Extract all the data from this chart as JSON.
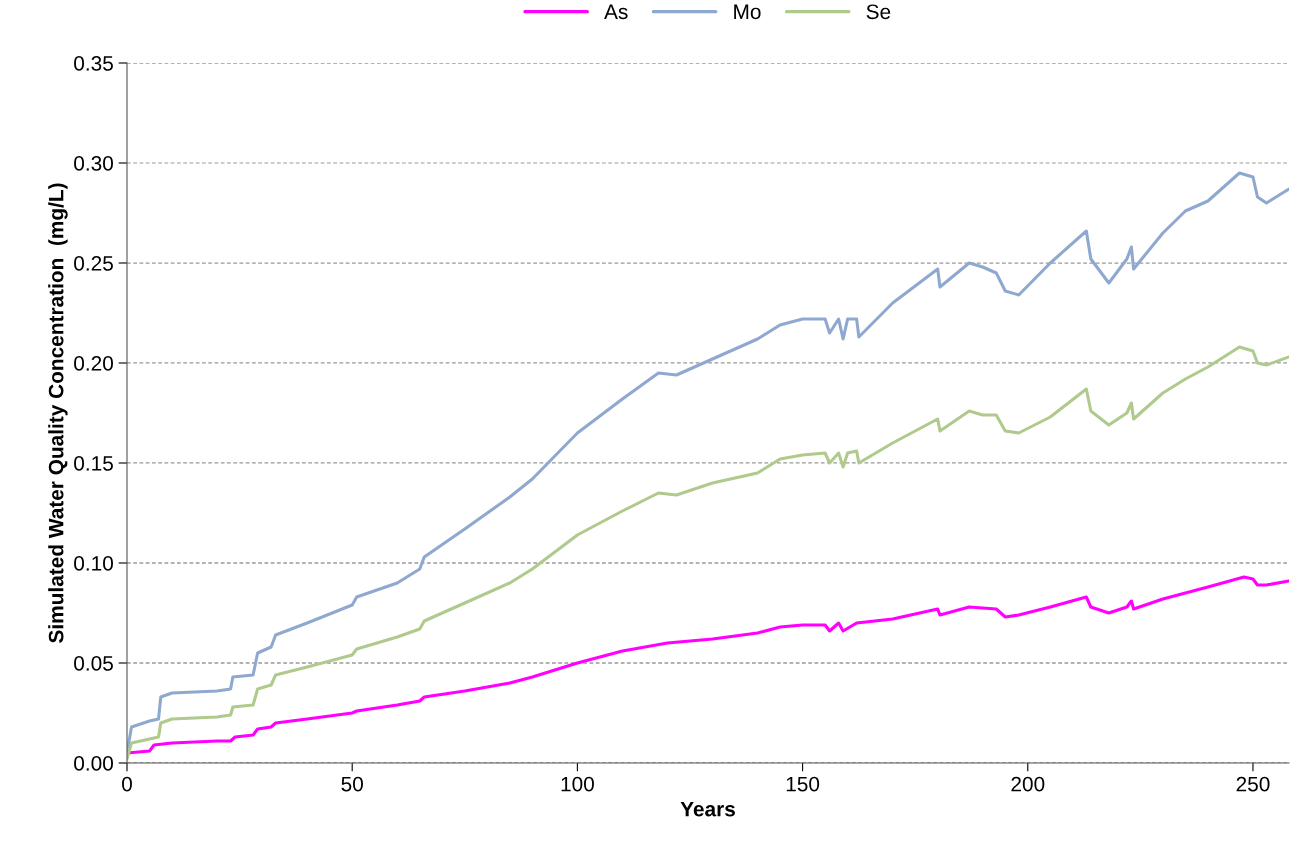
{
  "chart_data": {
    "type": "line",
    "xlabel": "Years",
    "ylabel": "Simulated Water Quality Concentration  (mg/L)",
    "xlim": [
      0,
      258
    ],
    "xticks": [
      0,
      50,
      100,
      150,
      200,
      250
    ],
    "ylim": [
      0,
      0.35
    ],
    "yticks": [
      {
        "value": 0,
        "label": "0.00"
      },
      {
        "value": 0.05,
        "label": "0.05"
      },
      {
        "value": 0.1,
        "label": "0.10"
      },
      {
        "value": 0.15,
        "label": "0.15"
      },
      {
        "value": 0.2,
        "label": "0.20"
      },
      {
        "value": 0.25,
        "label": "0.25"
      },
      {
        "value": 0.3,
        "label": "0.30"
      },
      {
        "value": 0.35,
        "label": "0.35"
      }
    ],
    "grid": "y",
    "legend": "top",
    "marker": "none",
    "line_style": "solid",
    "series": [
      {
        "name": "As",
        "color": "#ff00ff",
        "x": [
          0,
          5,
          6,
          10,
          20,
          23,
          24,
          28,
          29,
          32,
          33,
          40,
          50,
          51,
          60,
          65,
          66,
          75,
          85,
          90,
          100,
          110,
          120,
          130,
          140,
          145,
          150,
          155,
          156,
          158,
          159,
          162,
          170,
          180,
          180.5,
          187,
          193,
          195,
          198,
          205,
          213,
          214,
          218,
          222,
          223,
          223.5,
          230,
          240,
          248,
          250,
          251,
          253,
          258
        ],
        "values": [
          0.005,
          0.006,
          0.009,
          0.01,
          0.011,
          0.011,
          0.013,
          0.014,
          0.017,
          0.018,
          0.02,
          0.022,
          0.025,
          0.026,
          0.029,
          0.031,
          0.033,
          0.036,
          0.04,
          0.043,
          0.05,
          0.056,
          0.06,
          0.062,
          0.065,
          0.068,
          0.069,
          0.069,
          0.066,
          0.07,
          0.066,
          0.07,
          0.072,
          0.077,
          0.074,
          0.078,
          0.077,
          0.073,
          0.074,
          0.078,
          0.083,
          0.078,
          0.075,
          0.078,
          0.081,
          0.077,
          0.082,
          0.088,
          0.093,
          0.092,
          0.089,
          0.089,
          0.091
        ]
      },
      {
        "name": "Mo",
        "color": "#8fa8cf",
        "x": [
          0,
          1,
          5,
          7,
          7.5,
          10,
          20,
          23,
          23.5,
          28,
          29,
          32,
          33,
          40,
          50,
          51,
          60,
          65,
          66,
          75,
          85,
          90,
          100,
          110,
          118,
          122,
          130,
          140,
          145,
          150,
          155,
          156,
          158,
          159,
          160,
          162,
          162.5,
          170,
          180,
          180.5,
          187,
          190,
          193,
          195,
          198,
          205,
          213,
          214,
          218,
          222,
          223,
          223.5,
          230,
          235,
          240,
          247,
          250,
          251,
          253,
          258
        ],
        "values": [
          0.005,
          0.018,
          0.021,
          0.022,
          0.033,
          0.035,
          0.036,
          0.037,
          0.043,
          0.044,
          0.055,
          0.058,
          0.064,
          0.07,
          0.079,
          0.083,
          0.09,
          0.097,
          0.103,
          0.117,
          0.133,
          0.142,
          0.165,
          0.182,
          0.195,
          0.194,
          0.202,
          0.212,
          0.219,
          0.222,
          0.222,
          0.215,
          0.222,
          0.212,
          0.222,
          0.222,
          0.213,
          0.23,
          0.247,
          0.238,
          0.25,
          0.248,
          0.245,
          0.236,
          0.234,
          0.25,
          0.266,
          0.252,
          0.24,
          0.252,
          0.258,
          0.247,
          0.265,
          0.276,
          0.281,
          0.295,
          0.293,
          0.283,
          0.28,
          0.287
        ]
      },
      {
        "name": "Se",
        "color": "#b0c98c",
        "x": [
          0,
          1,
          5,
          7,
          7.5,
          10,
          20,
          23,
          23.5,
          28,
          29,
          32,
          33,
          40,
          50,
          51,
          60,
          65,
          66,
          75,
          85,
          90,
          100,
          110,
          118,
          122,
          130,
          140,
          145,
          150,
          155,
          156,
          158,
          159,
          160,
          162,
          162.5,
          170,
          180,
          180.5,
          187,
          190,
          193,
          195,
          198,
          205,
          213,
          214,
          218,
          222,
          223,
          223.5,
          230,
          235,
          240,
          247,
          250,
          251,
          253,
          258
        ],
        "values": [
          0.002,
          0.01,
          0.012,
          0.013,
          0.02,
          0.022,
          0.023,
          0.024,
          0.028,
          0.029,
          0.037,
          0.039,
          0.044,
          0.048,
          0.054,
          0.057,
          0.063,
          0.067,
          0.071,
          0.08,
          0.09,
          0.097,
          0.114,
          0.126,
          0.135,
          0.134,
          0.14,
          0.145,
          0.152,
          0.154,
          0.155,
          0.15,
          0.155,
          0.148,
          0.155,
          0.156,
          0.15,
          0.16,
          0.172,
          0.166,
          0.176,
          0.174,
          0.174,
          0.166,
          0.165,
          0.173,
          0.187,
          0.176,
          0.169,
          0.175,
          0.18,
          0.172,
          0.185,
          0.192,
          0.198,
          0.208,
          0.206,
          0.2,
          0.199,
          0.203
        ]
      }
    ]
  }
}
